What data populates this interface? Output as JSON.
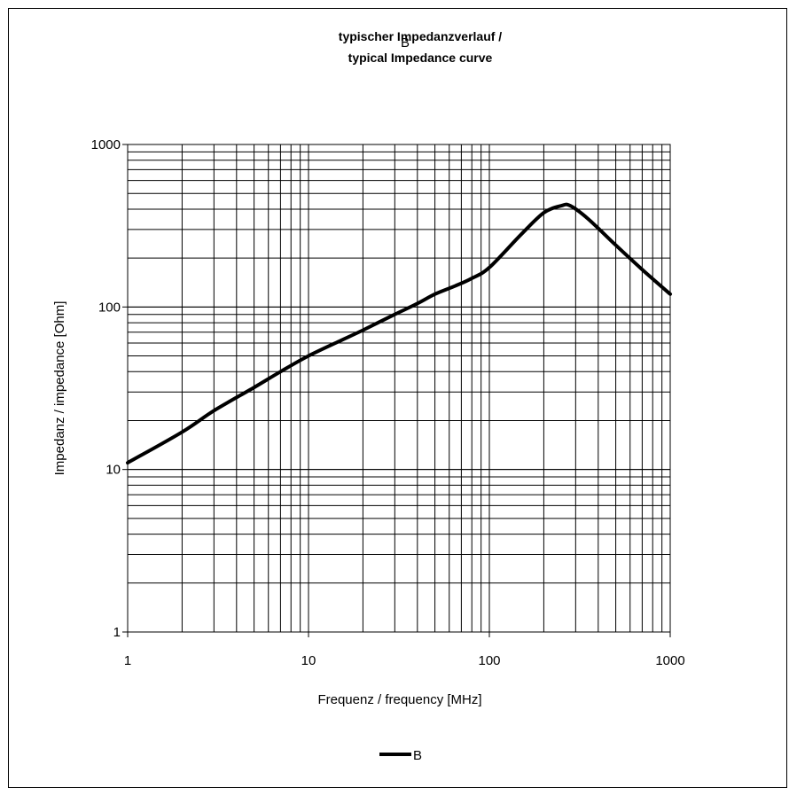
{
  "chart_data": {
    "type": "line",
    "title_line1": "typischer Impedanzverlauf /",
    "title_line2": "typical Impedance curve",
    "title_overlay": "B",
    "xlabel": "Frequenz / frequency [MHz]",
    "ylabel": "Impedanz / impedance [Ohm]",
    "xscale": "log",
    "yscale": "log",
    "xlim": [
      1,
      1000
    ],
    "ylim": [
      1,
      1000
    ],
    "x_ticks": [
      "1",
      "10",
      "100",
      "1000"
    ],
    "y_ticks": [
      "1",
      "10",
      "100",
      "1000"
    ],
    "grid": true,
    "legend_position": "bottom",
    "series": [
      {
        "name": "B",
        "color": "#000000",
        "x": [
          1,
          2,
          3,
          5,
          7,
          10,
          15,
          20,
          30,
          40,
          50,
          65,
          80,
          100,
          150,
          200,
          250,
          280,
          350,
          500,
          700,
          1000
        ],
        "y": [
          11,
          17,
          23,
          32,
          40,
          50,
          62,
          72,
          90,
          105,
          120,
          135,
          150,
          175,
          280,
          380,
          420,
          420,
          350,
          240,
          170,
          120
        ]
      }
    ]
  }
}
